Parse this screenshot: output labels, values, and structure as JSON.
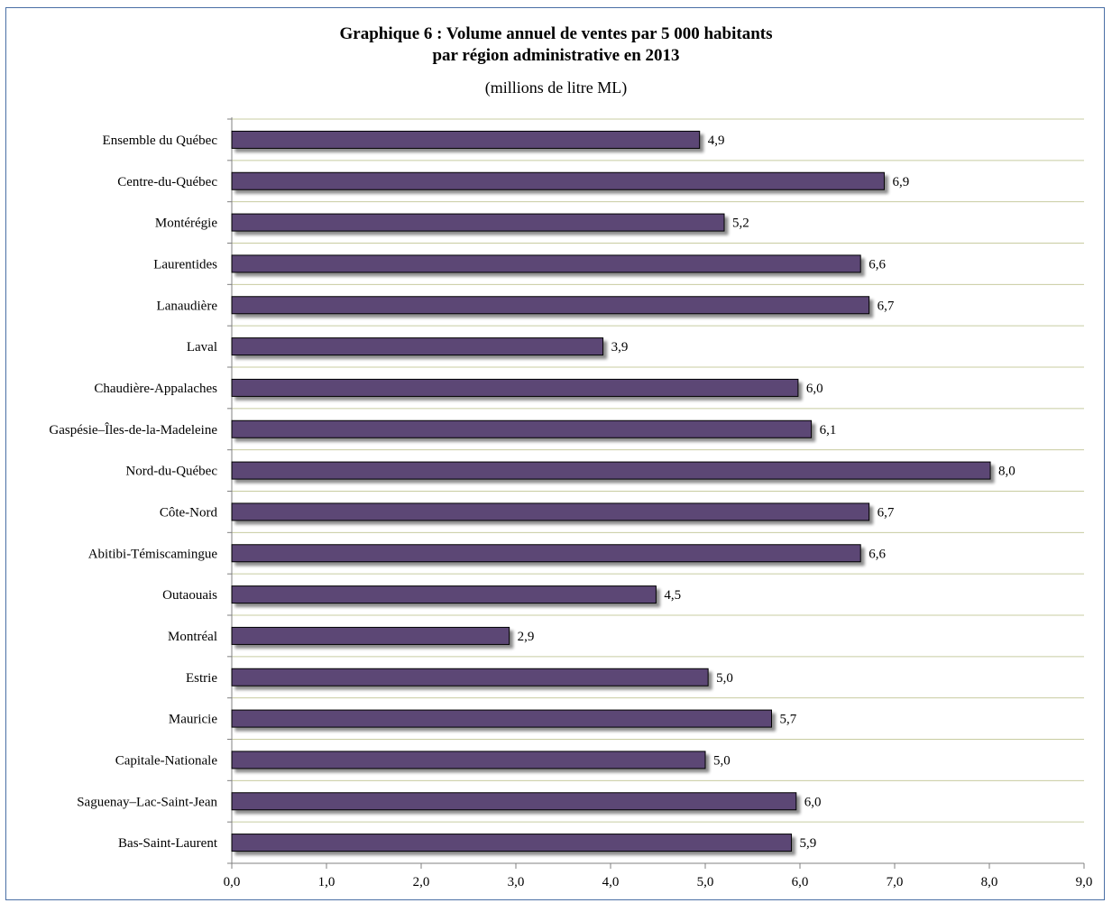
{
  "chart_data": {
    "type": "bar",
    "orientation": "horizontal",
    "title": "Graphique 6 : Volume annuel de ventes par 5 000 habitants\npar région administrative  en 2013",
    "subtitle": "(millions de litre ML)",
    "categories": [
      "Ensemble du Québec",
      "Centre-du-Québec",
      "Montérégie",
      "Laurentides",
      "Lanaudière",
      "Laval",
      "Chaudière-Appalaches",
      "Gaspésie–Îles-de-la-Madeleine",
      "Nord-du-Québec",
      "Côte-Nord",
      "Abitibi-Témiscamingue",
      "Outaouais",
      "Montréal",
      "Estrie",
      "Mauricie",
      "Capitale-Nationale",
      "Saguenay–Lac-Saint-Jean",
      "Bas-Saint-Laurent"
    ],
    "values": [
      4.94,
      6.89,
      5.2,
      6.64,
      6.73,
      3.92,
      5.98,
      6.12,
      8.01,
      6.73,
      6.64,
      4.48,
      2.93,
      5.03,
      5.7,
      5.0,
      5.96,
      5.91
    ],
    "value_labels": [
      "4,9",
      "6,9",
      "5,2",
      "6,6",
      "6,7",
      "3,9",
      "6,0",
      "6,1",
      "8,0",
      "6,7",
      "6,6",
      "4,5",
      "2,9",
      "5,0",
      "5,7",
      "5,0",
      "6,0",
      "5,9"
    ],
    "xlim": [
      0,
      9
    ],
    "xticks": [
      0,
      1,
      2,
      3,
      4,
      5,
      6,
      7,
      8,
      9
    ],
    "xtick_labels": [
      "0,0",
      "1,0",
      "2,0",
      "3,0",
      "4,0",
      "5,0",
      "6,0",
      "7,0",
      "8,0",
      "9,0"
    ],
    "grid": "horizontal",
    "legend": "none",
    "colors": {
      "bar_fill": "#5b4775",
      "bar_stroke": "#000000",
      "grid": "#c8cca0",
      "axis": "#808080",
      "frame": "#4a6fa5"
    }
  }
}
